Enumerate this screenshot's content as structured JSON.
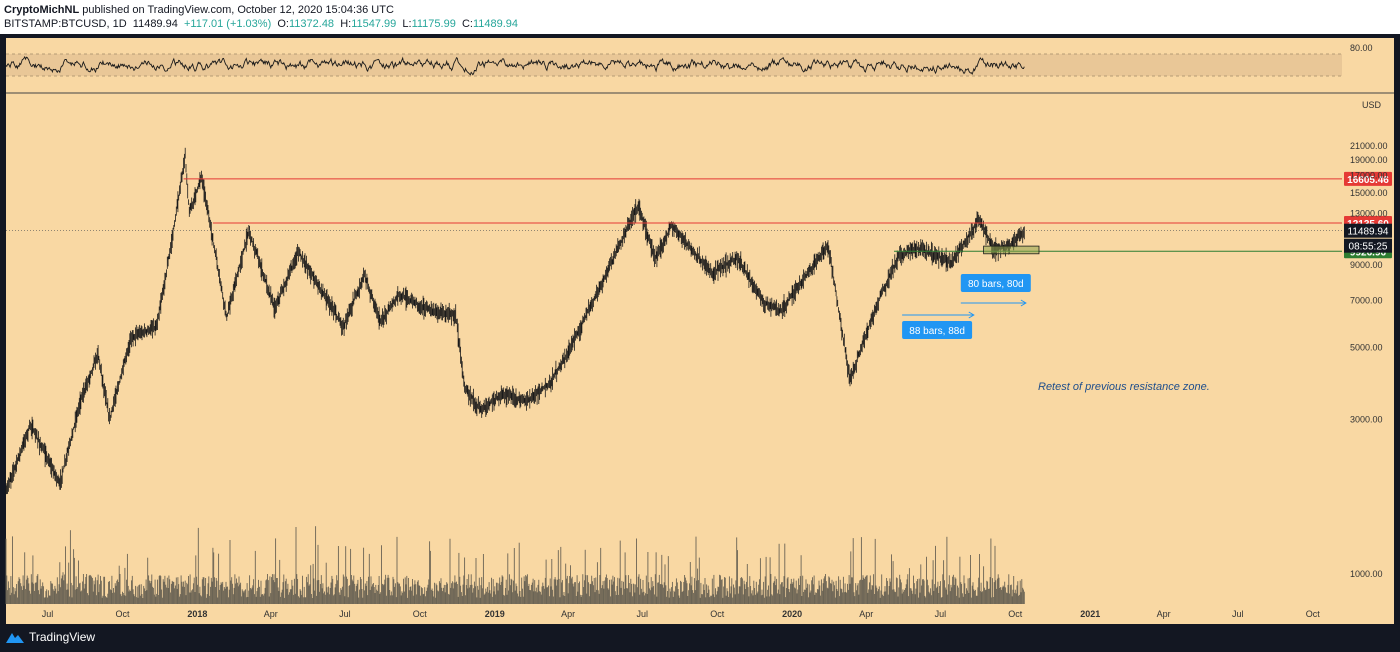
{
  "header": {
    "author": "CryptoMichNL",
    "published_text": "published on TradingView.com, October 12, 2020 15:04:36 UTC",
    "symbol": "BITSTAMP:BTCUSD, 1D",
    "last": "11489.94",
    "change": "+117.01 (+1.03%)",
    "o_label": "O:",
    "o": "11372.48",
    "h_label": "H:",
    "h": "11547.99",
    "l_label": "L:",
    "l": "11175.99",
    "c_label": "C:",
    "c": "11489.94"
  },
  "footer": {
    "logo_text": "TradingView"
  },
  "colors": {
    "background": "#f9d8a3",
    "rsi_band": "#e9c797",
    "resistance": "#e53935",
    "support": "#2e7d32",
    "label_blue": "#2196f3",
    "candle": "#1a1a1a",
    "volume": "#6b6455"
  },
  "rsi": {
    "level_label": "80.00"
  },
  "chart_data": {
    "type": "line",
    "symbol": "BITSTAMP:BTCUSD",
    "interval": "1D",
    "currency_label": "USD",
    "scale": "log",
    "y_ticks": [
      "21000.00",
      "19000.00",
      "17000.00",
      "15000.00",
      "13000.00",
      "9000.00",
      "7000.00",
      "5000.00",
      "3000.00",
      "1000.00"
    ],
    "x_ticks": [
      "Jul",
      "Oct",
      "2018",
      "Apr",
      "Jul",
      "Oct",
      "2019",
      "Apr",
      "Jul",
      "Oct",
      "2020",
      "Apr",
      "Jul",
      "Oct",
      "2021",
      "Apr",
      "Jul",
      "Oct"
    ],
    "x_range": [
      "2017-05-11",
      "2021-11-06"
    ],
    "price_path": [
      [
        "2017-05-11",
        1800
      ],
      [
        "2017-06-10",
        2900
      ],
      [
        "2017-07-16",
        1900
      ],
      [
        "2017-08-10",
        3400
      ],
      [
        "2017-09-01",
        4800
      ],
      [
        "2017-09-15",
        3000
      ],
      [
        "2017-10-12",
        5400
      ],
      [
        "2017-11-12",
        5800
      ],
      [
        "2017-11-30",
        10500
      ],
      [
        "2017-12-17",
        19600
      ],
      [
        "2017-12-22",
        13000
      ],
      [
        "2018-01-06",
        17000
      ],
      [
        "2018-02-06",
        6200
      ],
      [
        "2018-03-05",
        11500
      ],
      [
        "2018-04-06",
        6600
      ],
      [
        "2018-05-05",
        9900
      ],
      [
        "2018-06-29",
        5800
      ],
      [
        "2018-07-25",
        8400
      ],
      [
        "2018-08-14",
        6000
      ],
      [
        "2018-09-05",
        7300
      ],
      [
        "2018-10-15",
        6500
      ],
      [
        "2018-11-14",
        6300
      ],
      [
        "2018-11-25",
        3800
      ],
      [
        "2018-12-15",
        3200
      ],
      [
        "2019-01-10",
        3600
      ],
      [
        "2019-02-08",
        3400
      ],
      [
        "2019-03-10",
        3900
      ],
      [
        "2019-04-02",
        4900
      ],
      [
        "2019-05-14",
        8100
      ],
      [
        "2019-06-26",
        13800
      ],
      [
        "2019-07-17",
        9400
      ],
      [
        "2019-08-06",
        11900
      ],
      [
        "2019-09-24",
        8500
      ],
      [
        "2019-10-26",
        9500
      ],
      [
        "2019-11-25",
        7000
      ],
      [
        "2019-12-18",
        6500
      ],
      [
        "2020-02-14",
        10400
      ],
      [
        "2020-03-12",
        4000
      ],
      [
        "2020-04-15",
        6900
      ],
      [
        "2020-05-10",
        9500
      ],
      [
        "2020-06-01",
        10200
      ],
      [
        "2020-07-15",
        9200
      ],
      [
        "2020-08-17",
        12400
      ],
      [
        "2020-09-05",
        10100
      ],
      [
        "2020-09-23",
        10300
      ],
      [
        "2020-10-12",
        11489.94
      ]
    ],
    "horizontal_levels": [
      {
        "value": 16605.46,
        "label": "16605.46",
        "color": "#e53935"
      },
      {
        "value": 12135.6,
        "label": "12135.60",
        "color": "#e53935"
      },
      {
        "value": 9926.96,
        "label": "9926.96",
        "color": "#2e7d32"
      }
    ],
    "last_price": {
      "value": 11489.94,
      "label": "11489.94",
      "countdown": "08:55:25"
    },
    "annotations": [
      {
        "text": "88 bars, 88d"
      },
      {
        "text": "80 bars, 80d"
      },
      {
        "text": "Retest of previous resistance zone."
      }
    ],
    "rsi_band": [
      30,
      70
    ],
    "grid": false
  }
}
